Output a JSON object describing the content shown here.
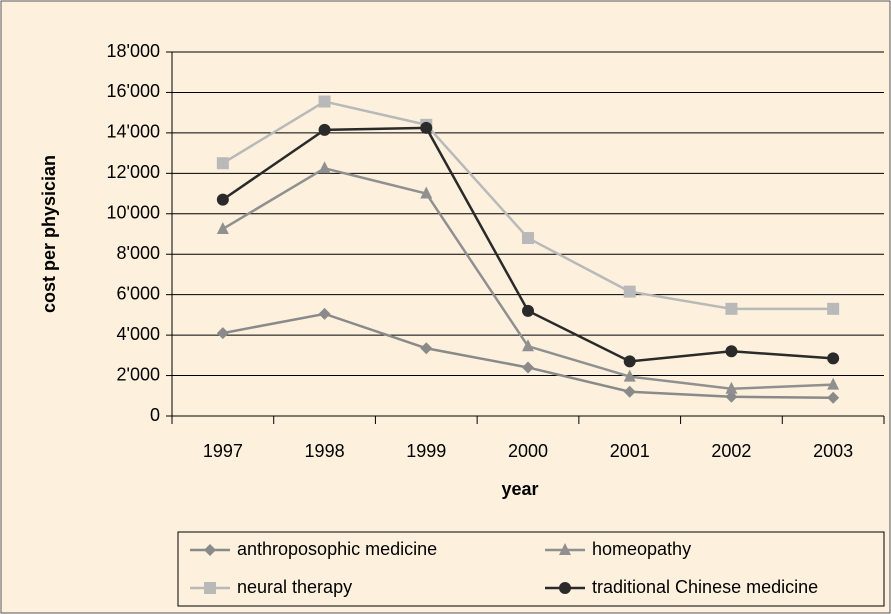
{
  "chart_data": {
    "type": "line",
    "categories": [
      "1997",
      "1998",
      "1999",
      "2000",
      "2001",
      "2002",
      "2003"
    ],
    "x_label": "year",
    "y_label": "cost per physician",
    "ylim": [
      0,
      18000
    ],
    "yticks": [
      0,
      {
        "value": 2000,
        "label": "2'000"
      },
      {
        "value": 4000,
        "label": "4'000"
      },
      {
        "value": 6000,
        "label": "6'000"
      },
      {
        "value": 8000,
        "label": "8'000"
      },
      {
        "value": 10000,
        "label": "10'000"
      },
      {
        "value": 12000,
        "label": "12'000"
      },
      {
        "value": 14000,
        "label": "14'000"
      },
      {
        "value": 16000,
        "label": "16'000"
      },
      {
        "value": 18000,
        "label": "18'000"
      }
    ],
    "grid": true,
    "legend": "bottom",
    "series": [
      {
        "name": "anthroposophic medicine",
        "color": "#8a8a8a",
        "marker": "diamond",
        "values": [
          4100,
          5050,
          3350,
          2400,
          1200,
          950,
          900
        ]
      },
      {
        "name": "homeopathy",
        "color": "#909090",
        "marker": "triangle",
        "values": [
          9250,
          12250,
          11000,
          3450,
          1950,
          1350,
          1550
        ]
      },
      {
        "name": "neural therapy",
        "color": "#b9b9b9",
        "marker": "square",
        "values": [
          12500,
          15550,
          14400,
          8800,
          6150,
          5300,
          5300
        ]
      },
      {
        "name": "traditional Chinese medicine",
        "color": "#2a2a2a",
        "marker": "circle",
        "values": [
          10700,
          14150,
          14250,
          5200,
          2700,
          3200,
          2850
        ]
      }
    ]
  }
}
